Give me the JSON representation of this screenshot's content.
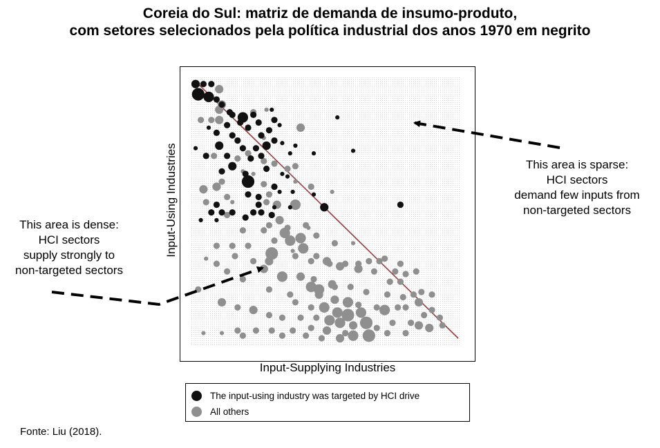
{
  "title_line1": "Coreia do Sul: matriz de demanda de insumo-produto,",
  "title_line2": "com setores selecionados pela política industrial dos anos 1970 em negrito",
  "source": "Fonte: Liu (2018).",
  "annotations": {
    "right": [
      "This area is sparse:",
      "HCI sectors",
      "demand few inputs from",
      "non-targeted sectors"
    ],
    "left": [
      "This area is dense:",
      "HCI sectors",
      "supply strongly to",
      "non-targeted sectors"
    ]
  },
  "legend": {
    "targeted": "The input-using industry was targeted by HCI drive",
    "others": "All others"
  },
  "colors": {
    "targeted": "#111111",
    "others": "#8f8f8f",
    "diagonal": "#9b3a3a"
  },
  "chart_data": {
    "type": "scatter",
    "xlabel": "Input-Supplying Industries",
    "ylabel": "Input-Using Industries",
    "xlim": [
      0,
      100
    ],
    "ylim": [
      0,
      100
    ],
    "grid": true,
    "diagonal_line": {
      "from": [
        0,
        100
      ],
      "to": [
        100,
        0
      ]
    },
    "series": [
      {
        "name": "The input-using industry was targeted by HCI drive",
        "points": [
          [
            0,
            99,
            3
          ],
          [
            3,
            99,
            2
          ],
          [
            6,
            99,
            2
          ],
          [
            1,
            95,
            5
          ],
          [
            5,
            94,
            4
          ],
          [
            8,
            93,
            2
          ],
          [
            10,
            91,
            2
          ],
          [
            13,
            88,
            2
          ],
          [
            14,
            87,
            2
          ],
          [
            18,
            86,
            4
          ],
          [
            22,
            87,
            2
          ],
          [
            29,
            89,
            1
          ],
          [
            54,
            86,
            1
          ],
          [
            17,
            84,
            2
          ],
          [
            24,
            84,
            2
          ],
          [
            30,
            85,
            2
          ],
          [
            32,
            83,
            1
          ],
          [
            5,
            82,
            1
          ],
          [
            12,
            83,
            2
          ],
          [
            20,
            82,
            2
          ],
          [
            28,
            81,
            2
          ],
          [
            8,
            80,
            2
          ],
          [
            14,
            79,
            2
          ],
          [
            25,
            79,
            2
          ],
          [
            16,
            77,
            2
          ],
          [
            30,
            77,
            2
          ],
          [
            33,
            76,
            1
          ],
          [
            38,
            75,
            1
          ],
          [
            27,
            75,
            3
          ],
          [
            0,
            74,
            1
          ],
          [
            9,
            75,
            3
          ],
          [
            18,
            74,
            2
          ],
          [
            23,
            74,
            2
          ],
          [
            25,
            71,
            2
          ],
          [
            36,
            72,
            1
          ],
          [
            45,
            72,
            1
          ],
          [
            60,
            73,
            1
          ],
          [
            4,
            71,
            2
          ],
          [
            12,
            71,
            2
          ],
          [
            21,
            70,
            2
          ],
          [
            14,
            67,
            3
          ],
          [
            27,
            66,
            2
          ],
          [
            33,
            64,
            1
          ],
          [
            35,
            63,
            1
          ],
          [
            10,
            65,
            2
          ],
          [
            19,
            64,
            2
          ],
          [
            20,
            61,
            5
          ],
          [
            30,
            59,
            2
          ],
          [
            32,
            57,
            1
          ],
          [
            37,
            57,
            1
          ],
          [
            45,
            56,
            1
          ],
          [
            20,
            56,
            2
          ],
          [
            24,
            55,
            2
          ],
          [
            24,
            52,
            2
          ],
          [
            8,
            52,
            2
          ],
          [
            6,
            49,
            2
          ],
          [
            10,
            49,
            2
          ],
          [
            14,
            49,
            2
          ],
          [
            22,
            49,
            2
          ],
          [
            25,
            49,
            2
          ],
          [
            29,
            48,
            2
          ],
          [
            30,
            51,
            1
          ],
          [
            36,
            51,
            1
          ],
          [
            49,
            51,
            3
          ],
          [
            78,
            52,
            2
          ],
          [
            2,
            46,
            1
          ],
          [
            8,
            46,
            1
          ],
          [
            19,
            47,
            2
          ]
        ]
      },
      {
        "name": "All others",
        "points": [
          [
            9,
            97,
            3
          ],
          [
            10,
            91,
            3
          ],
          [
            9,
            89,
            3
          ],
          [
            9,
            85,
            3
          ],
          [
            6,
            85,
            2
          ],
          [
            2,
            85,
            2
          ],
          [
            14,
            87,
            2
          ],
          [
            22,
            88,
            2
          ],
          [
            27,
            89,
            1
          ],
          [
            40,
            82,
            3
          ],
          [
            26,
            78,
            1
          ],
          [
            20,
            72,
            2
          ],
          [
            7,
            71,
            2
          ],
          [
            16,
            70,
            2
          ],
          [
            26,
            69,
            2
          ],
          [
            30,
            68,
            2
          ],
          [
            35,
            66,
            2
          ],
          [
            38,
            67,
            2
          ],
          [
            18,
            65,
            1
          ],
          [
            22,
            64,
            1
          ],
          [
            10,
            61,
            2
          ],
          [
            26,
            60,
            2
          ],
          [
            8,
            59,
            3
          ],
          [
            30,
            59,
            2
          ],
          [
            38,
            61,
            1
          ],
          [
            3,
            58,
            3
          ],
          [
            28,
            56,
            2
          ],
          [
            44,
            59,
            2
          ],
          [
            52,
            57,
            1
          ],
          [
            12,
            55,
            2
          ],
          [
            27,
            53,
            2
          ],
          [
            14,
            53,
            1
          ],
          [
            31,
            52,
            3
          ],
          [
            38,
            52,
            4
          ],
          [
            4,
            53,
            2
          ],
          [
            12,
            48,
            2
          ],
          [
            32,
            46,
            3
          ],
          [
            28,
            44,
            2
          ],
          [
            35,
            43,
            2
          ],
          [
            42,
            44,
            2
          ],
          [
            43,
            43,
            1
          ],
          [
            18,
            42,
            2
          ],
          [
            26,
            42,
            2
          ],
          [
            34,
            41,
            4
          ],
          [
            40,
            39,
            4
          ],
          [
            30,
            38,
            2
          ],
          [
            36,
            38,
            4
          ],
          [
            46,
            40,
            2
          ],
          [
            41,
            35,
            4
          ],
          [
            37,
            34,
            1
          ],
          [
            29,
            33,
            5
          ],
          [
            53,
            37,
            2
          ],
          [
            60,
            37,
            1
          ],
          [
            14,
            36,
            2
          ],
          [
            8,
            36,
            2
          ],
          [
            20,
            36,
            2
          ],
          [
            28,
            30,
            3
          ],
          [
            46,
            32,
            2
          ],
          [
            51,
            29,
            2
          ],
          [
            57,
            29,
            2
          ],
          [
            62,
            29,
            2
          ],
          [
            66,
            30,
            2
          ],
          [
            70,
            30,
            2
          ],
          [
            72,
            31,
            2
          ],
          [
            78,
            29,
            2
          ],
          [
            4,
            31,
            1
          ],
          [
            15,
            32,
            2
          ],
          [
            22,
            30,
            2
          ],
          [
            38,
            32,
            2
          ],
          [
            44,
            30,
            2
          ],
          [
            50,
            30,
            3
          ],
          [
            55,
            28,
            3
          ],
          [
            62,
            27,
            3
          ],
          [
            68,
            26,
            2
          ],
          [
            76,
            26,
            2
          ],
          [
            80,
            25,
            2
          ],
          [
            74,
            22,
            2
          ],
          [
            78,
            22,
            2
          ],
          [
            84,
            26,
            2
          ],
          [
            8,
            29,
            2
          ],
          [
            12,
            26,
            2
          ],
          [
            18,
            23,
            2
          ],
          [
            26,
            27,
            3
          ],
          [
            33,
            24,
            4
          ],
          [
            40,
            24,
            3
          ],
          [
            45,
            23,
            2
          ],
          [
            52,
            21,
            3
          ],
          [
            44,
            20,
            4
          ],
          [
            47,
            19,
            4
          ],
          [
            53,
            20,
            2
          ],
          [
            59,
            20,
            2
          ],
          [
            65,
            18,
            2
          ],
          [
            73,
            17,
            2
          ],
          [
            79,
            16,
            2
          ],
          [
            83,
            17,
            2
          ],
          [
            86,
            18,
            2
          ],
          [
            90,
            17,
            2
          ],
          [
            1,
            19,
            2
          ],
          [
            28,
            19,
            2
          ],
          [
            36,
            17,
            2
          ],
          [
            47,
            17,
            3
          ],
          [
            53,
            15,
            3
          ],
          [
            58,
            14,
            4
          ],
          [
            62,
            13,
            2
          ],
          [
            69,
            12,
            2
          ],
          [
            10,
            14,
            3
          ],
          [
            16,
            12,
            2
          ],
          [
            22,
            11,
            3
          ],
          [
            38,
            14,
            2
          ],
          [
            44,
            12,
            2
          ],
          [
            49,
            12,
            4
          ],
          [
            54,
            10,
            4
          ],
          [
            58,
            9,
            5
          ],
          [
            63,
            10,
            4
          ],
          [
            72,
            11,
            4
          ],
          [
            77,
            12,
            2
          ],
          [
            80,
            12,
            2
          ],
          [
            85,
            14,
            3
          ],
          [
            90,
            11,
            2
          ],
          [
            87,
            9,
            2
          ],
          [
            93,
            8,
            2
          ],
          [
            28,
            9,
            2
          ],
          [
            33,
            8,
            2
          ],
          [
            40,
            8,
            2
          ],
          [
            46,
            8,
            2
          ],
          [
            51,
            7,
            4
          ],
          [
            55,
            6,
            4
          ],
          [
            60,
            5,
            3
          ],
          [
            65,
            6,
            5
          ],
          [
            69,
            4,
            2
          ],
          [
            75,
            6,
            2
          ],
          [
            82,
            6,
            2
          ],
          [
            85,
            5,
            3
          ],
          [
            89,
            4,
            3
          ],
          [
            94,
            5,
            2
          ],
          [
            16,
            3,
            2
          ],
          [
            23,
            3,
            2
          ],
          [
            29,
            3,
            2
          ],
          [
            37,
            3,
            2
          ],
          [
            44,
            4,
            2
          ],
          [
            50,
            3,
            3
          ],
          [
            57,
            2,
            2
          ],
          [
            60,
            1,
            4
          ],
          [
            66,
            1,
            5
          ],
          [
            73,
            2,
            2
          ],
          [
            80,
            2,
            2
          ],
          [
            3,
            2,
            1
          ],
          [
            10,
            2,
            1
          ],
          [
            18,
            1,
            2
          ],
          [
            33,
            1,
            2
          ],
          [
            42,
            1,
            2
          ],
          [
            48,
            0,
            2
          ],
          [
            55,
            0,
            3
          ]
        ]
      }
    ]
  }
}
